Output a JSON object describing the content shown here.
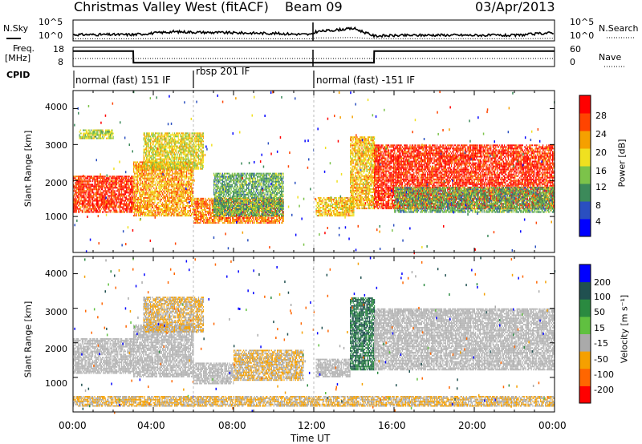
{
  "header": {
    "station": "Christmas Valley West (fitACF)",
    "beam": "Beam 09",
    "date": "03/Apr/2013"
  },
  "noise_panel": {
    "left_label": "N.Sky",
    "right_label": "N.Search",
    "left_ticks": [
      "10^5",
      "10^0"
    ],
    "right_ticks": [
      "10^5",
      "10^0"
    ]
  },
  "freq_panel": {
    "left_label_1": "Freq.",
    "left_label_2": "[MHz]",
    "right_label": "Nave",
    "left_ticks": [
      "18",
      "8"
    ],
    "right_ticks": [
      "60",
      "0"
    ]
  },
  "cpid_panel": {
    "label": "CPID",
    "segments": [
      "normal (fast) 151 IF",
      "rbsp 201 IF",
      "normal (fast) -151 IF"
    ]
  },
  "power_panel": {
    "ylabel": "Slant Range [km]",
    "yticks": [
      "4000",
      "3000",
      "2000",
      "1000"
    ],
    "colorbar_label": "Power [dB]",
    "colorbar_ticks": [
      "28",
      "24",
      "20",
      "16",
      "12",
      "8",
      "4"
    ]
  },
  "velocity_panel": {
    "ylabel": "Slant Range [km]",
    "yticks": [
      "4000",
      "3000",
      "2000",
      "1000"
    ],
    "colorbar_label": "Velocity [m s⁻¹]",
    "colorbar_ticks": [
      "200",
      "100",
      "50",
      "15",
      "-15",
      "-50",
      "-100",
      "-200"
    ]
  },
  "xaxis": {
    "label": "Time UT",
    "ticks": [
      "00:00",
      "04:00",
      "08:00",
      "12:00",
      "16:00",
      "20:00",
      "00:00"
    ]
  },
  "colors": {
    "power_scale": [
      "#0000ff",
      "#2a4fc0",
      "#3c8a5a",
      "#7cc34a",
      "#f0e020",
      "#f5a000",
      "#ff4400",
      "#ff0000"
    ],
    "velocity_scale": [
      "#ff0000",
      "#ff6600",
      "#f5a000",
      "#aaaaaa",
      "#60c040",
      "#2a8a40",
      "#205050",
      "#0000ff"
    ],
    "ground_scatter": "#b4b4b4"
  },
  "chart_data": [
    {
      "type": "line",
      "title": "N.Sky / N.Search",
      "x": [
        0,
        3,
        5,
        7,
        10,
        11.9,
        12.1,
        14,
        15,
        18,
        22,
        24
      ],
      "series": [
        {
          "name": "N.Sky",
          "values": [
            1.5,
            1.5,
            2.2,
            2.0,
            1.8,
            1.5,
            2.2,
            3.0,
            1.2,
            1.4,
            1.3,
            2.0
          ]
        },
        {
          "name": "N.Search",
          "values": [
            0.5,
            0.5,
            0.6,
            0.6,
            0.5,
            0.5,
            0.7,
            0.8,
            0.5,
            0.5,
            0.5,
            0.6
          ]
        }
      ],
      "ylim": [
        0,
        5
      ],
      "xlim": [
        0,
        24
      ]
    },
    {
      "type": "line",
      "title": "Freq / Nave",
      "x": [
        0,
        3,
        3.01,
        11.9,
        12.1,
        15,
        15.01,
        24
      ],
      "series": [
        {
          "name": "Freq",
          "values": [
            16,
            16,
            10,
            10,
            10,
            10,
            16,
            16
          ]
        },
        {
          "name": "Nave",
          "values": [
            25,
            25,
            25,
            25,
            25,
            25,
            25,
            25
          ]
        }
      ],
      "ylim": [
        8,
        18
      ],
      "xlim": [
        0,
        24
      ]
    },
    {
      "type": "heatmap",
      "title": "Power",
      "xlabel": "Time UT",
      "ylabel": "Slant Range [km]",
      "xlim": [
        0,
        24
      ],
      "ylim": [
        0,
        4500
      ],
      "zlabel": "Power [dB]",
      "zlim": [
        0,
        32
      ],
      "regions": [
        {
          "t0": 0,
          "t1": 3,
          "r0": 1100,
          "r1": 2100,
          "z": 28
        },
        {
          "t0": 0.3,
          "t1": 2.0,
          "r0": 3150,
          "r1": 3400,
          "z": 16
        },
        {
          "t0": 3,
          "t1": 6,
          "r0": 1000,
          "r1": 2500,
          "z": 22
        },
        {
          "t0": 3.5,
          "t1": 6.5,
          "r0": 2300,
          "r1": 3300,
          "z": 18
        },
        {
          "t0": 6,
          "t1": 10.5,
          "r0": 800,
          "r1": 1500,
          "z": 24
        },
        {
          "t0": 7,
          "t1": 10.5,
          "r0": 1000,
          "r1": 2200,
          "z": 12
        },
        {
          "t0": 12.1,
          "t1": 14,
          "r0": 1000,
          "r1": 1500,
          "z": 20
        },
        {
          "t0": 13.8,
          "t1": 15,
          "r0": 1200,
          "r1": 3200,
          "z": 20
        },
        {
          "t0": 15,
          "t1": 24,
          "r0": 1200,
          "r1": 3000,
          "z": 28
        },
        {
          "t0": 16,
          "t1": 24,
          "r0": 1100,
          "r1": 1800,
          "z": 12
        }
      ]
    },
    {
      "type": "heatmap",
      "title": "Velocity",
      "xlabel": "Time UT",
      "ylabel": "Slant Range [km]",
      "xlim": [
        0,
        24
      ],
      "ylim": [
        0,
        4500
      ],
      "zlabel": "Velocity [m s⁻¹]",
      "zlim": [
        -200,
        200
      ],
      "regions": [
        {
          "t0": 0,
          "t1": 3,
          "r0": 1100,
          "r1": 2100,
          "z": 0,
          "ground": true
        },
        {
          "t0": 3,
          "t1": 6,
          "r0": 1000,
          "r1": 2500,
          "z": 0,
          "ground": true
        },
        {
          "t0": 3.5,
          "t1": 6.5,
          "r0": 2300,
          "r1": 3300,
          "z": -50
        },
        {
          "t0": 6,
          "t1": 8,
          "r0": 800,
          "r1": 1400,
          "z": 0,
          "ground": true
        },
        {
          "t0": 8,
          "t1": 11.5,
          "r0": 900,
          "r1": 1800,
          "z": -50
        },
        {
          "t0": 12.1,
          "t1": 13.8,
          "r0": 1000,
          "r1": 1500,
          "z": 0,
          "ground": true
        },
        {
          "t0": 13.8,
          "t1": 15,
          "r0": 1200,
          "r1": 3300,
          "z": 50
        },
        {
          "t0": 15,
          "t1": 24,
          "r0": 1200,
          "r1": 3000,
          "z": 0,
          "ground": true
        },
        {
          "t0": 0,
          "t1": 24,
          "r0": 150,
          "r1": 450,
          "z": -50
        }
      ]
    }
  ]
}
